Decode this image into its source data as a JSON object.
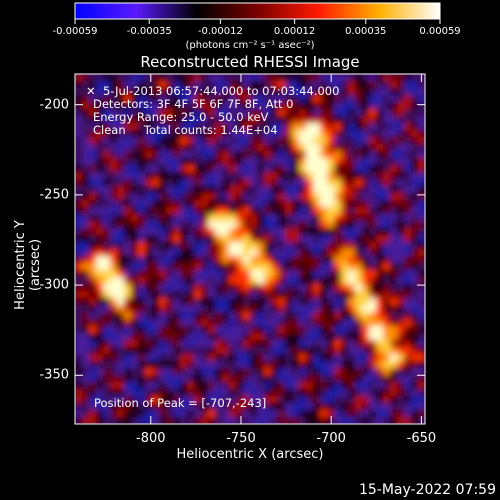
{
  "colorbar": {
    "ticks": [
      "-0.00059",
      "-0.00035",
      "-0.00012",
      "0.00012",
      "0.00035",
      "0.00059"
    ],
    "tick_values": [
      -0.00059,
      -0.00035,
      -0.00012,
      0.00012,
      0.00035,
      0.00059
    ],
    "units": "(photons cm⁻² s⁻¹ asec⁻²)",
    "colors": [
      "#0000ff",
      "#5a1aff",
      "#000000",
      "#7a0000",
      "#ff1a00",
      "#ffb000",
      "#ffffff"
    ]
  },
  "plot": {
    "title": "Reconstructed RHESSI Image",
    "info_lines": [
      "5-Jul-2013 06:57:44.000 to 07:03:44.000",
      "Detectors: 3F 4F 5F 6F 7F 8F, Att 0",
      "Energy Range: 25.0 - 50.0 keV",
      "Clean     Total counts: 1.44E+04"
    ],
    "peak_label": "Position of Peak = [-707,-243]"
  },
  "chart_data": {
    "type": "heatmap",
    "title": "Reconstructed RHESSI Image",
    "xlabel": "Heliocentric X (arcsec)",
    "ylabel": "Heliocentric Y (arcsec)",
    "xlim": [
      -842,
      -648
    ],
    "ylim": [
      -377,
      -183
    ],
    "x_ticks": [
      -800,
      -750,
      -700,
      -650
    ],
    "y_ticks": [
      -200,
      -250,
      -300,
      -350
    ],
    "x_tick_labels": [
      "-800",
      "-750",
      "-700",
      "-650"
    ],
    "y_tick_labels": [
      "-200",
      "-250",
      "-300",
      "-350"
    ],
    "colorbar_range": [
      -0.00059,
      0.00059
    ],
    "peak_position": [
      -707,
      -243
    ],
    "bright_features": [
      {
        "x": [
          -712,
          -700
        ],
        "y": [
          -215,
          -255
        ],
        "level": 1.0
      },
      {
        "x": [
          -760,
          -740
        ],
        "y": [
          -265,
          -295
        ],
        "level": 0.85
      },
      {
        "x": [
          -828,
          -818
        ],
        "y": [
          -290,
          -305
        ],
        "level": 0.85
      },
      {
        "x": [
          -690,
          -665
        ],
        "y": [
          -290,
          -340
        ],
        "level": 0.7
      }
    ]
  },
  "footer": {
    "timestamp": "15-May-2022 07:59"
  }
}
